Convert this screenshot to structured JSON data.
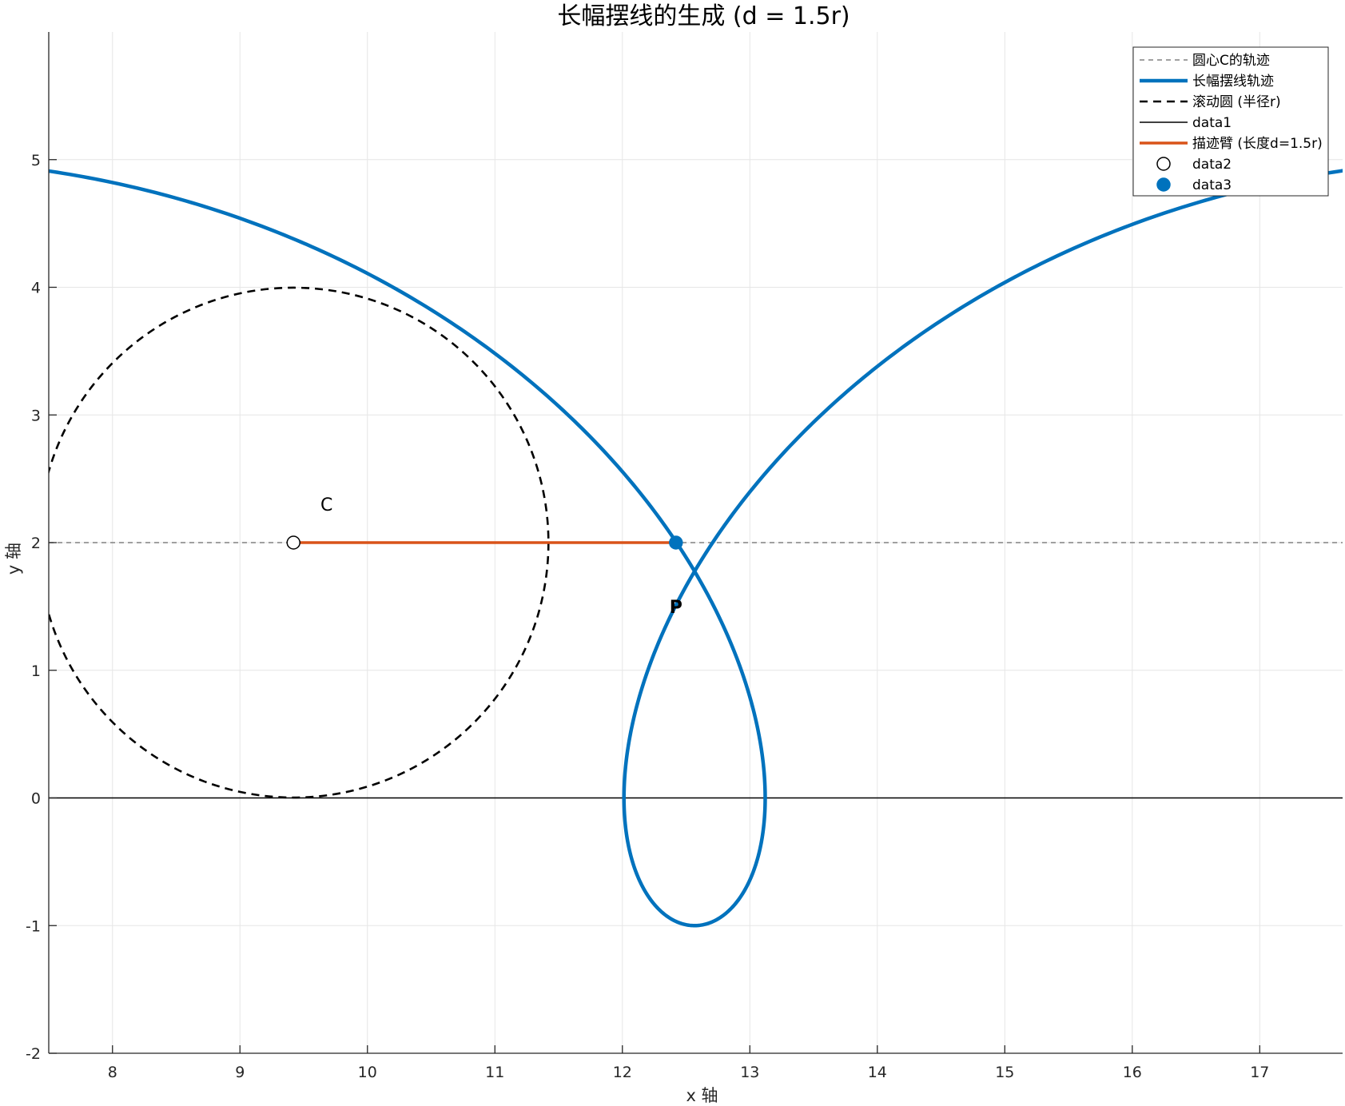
{
  "chart_data": {
    "type": "line",
    "title": "长幅摆线的生成 (d = 1.5r)",
    "xlabel": "x 轴",
    "ylabel": "y 轴",
    "xlim": [
      7.5,
      17.65
    ],
    "ylim": [
      -2,
      6
    ],
    "xticks": [
      8,
      9,
      10,
      11,
      12,
      13,
      14,
      15,
      16,
      17
    ],
    "xtick_labels": [
      "8",
      "9",
      "10",
      "11",
      "12",
      "13",
      "14",
      "15",
      "16",
      "17"
    ],
    "yticks": [
      -2,
      -1,
      0,
      1,
      2,
      3,
      4,
      5
    ],
    "ytick_labels": [
      "-2",
      "-1",
      "0",
      "1",
      "2",
      "3",
      "4",
      "5"
    ],
    "grid": true,
    "legend_position": "top-right",
    "params": {
      "r": 2,
      "d": 3,
      "theta": 4.712
    },
    "center": {
      "x": 9.42,
      "y": 2
    },
    "point_p": {
      "x": 12.42,
      "y": 2
    },
    "series": [
      {
        "name": "圆心C的轨迹",
        "kind": "center_path",
        "y": 2,
        "color": "#808080",
        "style": "dashed"
      },
      {
        "name": "长幅摆线轨迹",
        "kind": "trochoid",
        "color": "#0072BD",
        "style": "solid"
      },
      {
        "name": "滚动圆 (半径r)",
        "kind": "circle",
        "color": "#000000",
        "style": "dashed"
      },
      {
        "name": "data1",
        "kind": "ground",
        "y": 0,
        "color": "#000000",
        "style": "solid"
      },
      {
        "name": "描迹臂 (长度d=1.5r)",
        "kind": "arm",
        "color": "#D95319",
        "style": "solid"
      },
      {
        "name": "data2",
        "kind": "center_marker",
        "color": "#000000",
        "style": "marker-open"
      },
      {
        "name": "data3",
        "kind": "p_marker",
        "color": "#0072BD",
        "style": "marker-filled"
      }
    ],
    "annotations": [
      {
        "text": "C",
        "x": 9.68,
        "y": 2.25
      },
      {
        "text": "P",
        "x": 12.42,
        "y": 1.45
      }
    ]
  }
}
